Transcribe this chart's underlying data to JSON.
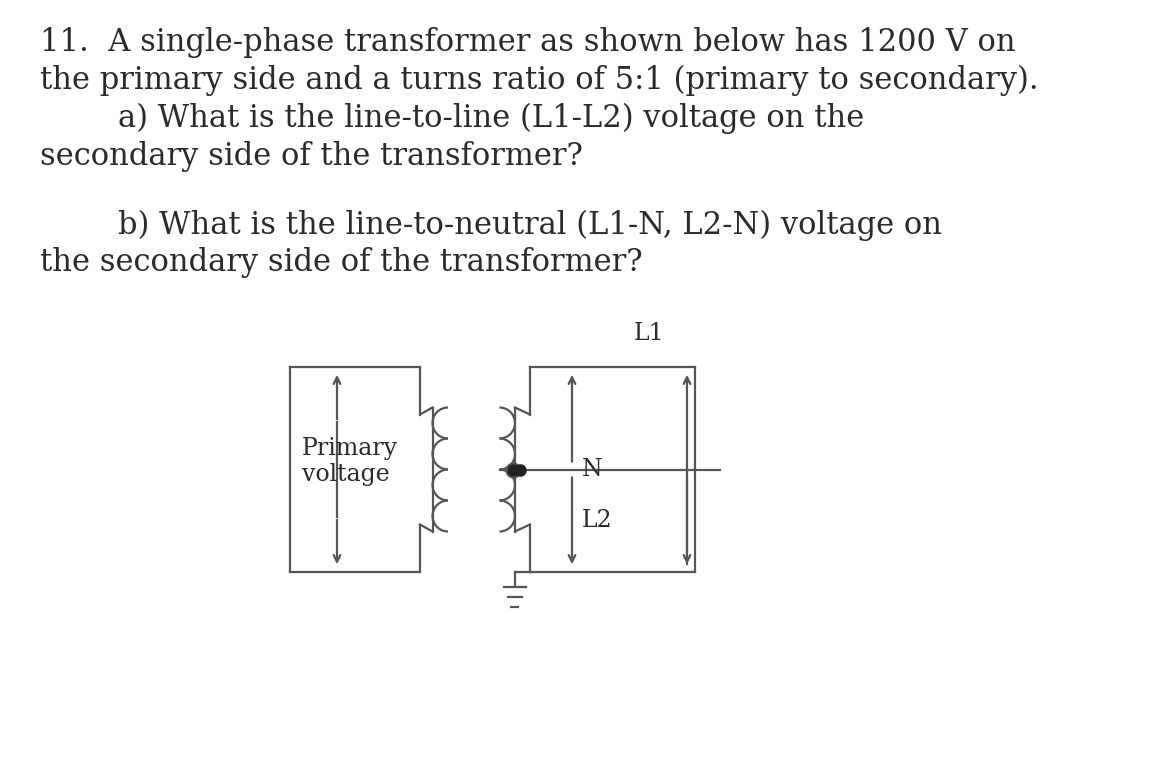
{
  "line1": "11.  A single-phase transformer as shown below has 1200 V on",
  "line2": "the primary side and a turns ratio of 5:1 (primary to secondary).",
  "line3": "        a) What is the line-to-line (L1-L2) voltage on the",
  "line4": "secondary side of the transformer?",
  "line5": "        b) What is the line-to-neutral (L1-N, L2-N) voltage on",
  "line6": "the secondary side of the transformer?",
  "label_primary": "Primary\nvoltage",
  "label_L1": "L1",
  "label_L2": "L2",
  "label_N": "N",
  "text_color": "#2a2a2a",
  "bg_color": "#ffffff",
  "line_color": "#555555",
  "font_size_text": 22,
  "font_size_label": 17
}
